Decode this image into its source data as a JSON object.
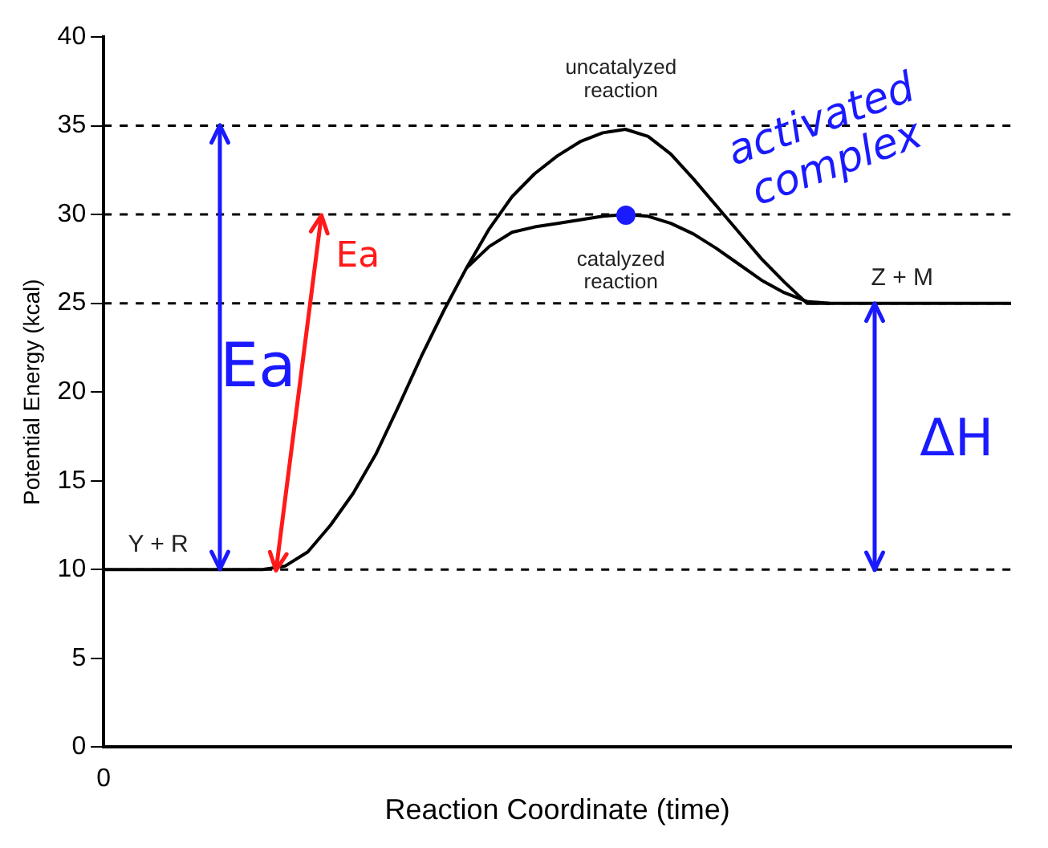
{
  "chart_data": {
    "type": "line",
    "xlabel": "Reaction Coordinate (time)",
    "ylabel": "Potential Energy (kcal)",
    "categories": [
      null,
      null,
      null,
      null,
      null,
      null,
      null,
      null,
      null,
      null,
      null,
      null,
      null,
      null,
      null,
      null,
      null,
      null,
      null,
      null,
      null,
      null,
      null,
      null,
      null,
      null,
      null,
      null,
      null,
      null,
      null,
      null,
      null,
      null,
      null,
      null,
      null,
      null,
      null,
      null,
      null
    ],
    "ylim": [
      0,
      40
    ],
    "yticks": [
      0,
      5,
      10,
      15,
      20,
      25,
      30,
      35,
      40
    ],
    "legend": false,
    "line_style": "solid",
    "marker": "none",
    "series": [
      {
        "color": "#000000",
        "values": [
          10,
          10,
          10,
          10,
          10,
          10,
          10,
          10,
          10.2,
          11,
          12.5,
          14.3,
          16.5,
          19.2,
          22,
          24.6,
          27,
          29.2,
          31,
          32.3,
          33.3,
          34.1,
          34.6,
          34.8,
          34.4,
          33.4,
          32,
          30.5,
          29,
          27.5,
          26.2,
          25,
          25,
          25,
          25,
          25,
          25,
          25,
          25,
          25,
          25
        ]
      },
      {
        "color": "#000000",
        "values": [
          null,
          null,
          null,
          null,
          null,
          null,
          null,
          null,
          null,
          null,
          null,
          null,
          null,
          null,
          null,
          null,
          27,
          28.2,
          29,
          29.3,
          29.5,
          29.7,
          29.9,
          30,
          29.9,
          29.5,
          28.9,
          28.1,
          27.2,
          26.3,
          25.6,
          25.1,
          25,
          null,
          null,
          null,
          null,
          null,
          null,
          null,
          null
        ]
      }
    ],
    "ref_lines": [
      {
        "axis": "y",
        "value": 10,
        "line_style": "dashed"
      },
      {
        "axis": "y",
        "value": 25,
        "line_style": "dashed"
      },
      {
        "axis": "y",
        "value": 30,
        "line_style": "dashed"
      },
      {
        "axis": "y",
        "value": 35,
        "line_style": "dashed"
      }
    ],
    "annotations": [
      "uncatalyzed reaction",
      "catalyzed reaction",
      "Y + R",
      "Z + M",
      "activated complex",
      "Ea",
      "Ea",
      "ΔH",
      "0"
    ]
  }
}
